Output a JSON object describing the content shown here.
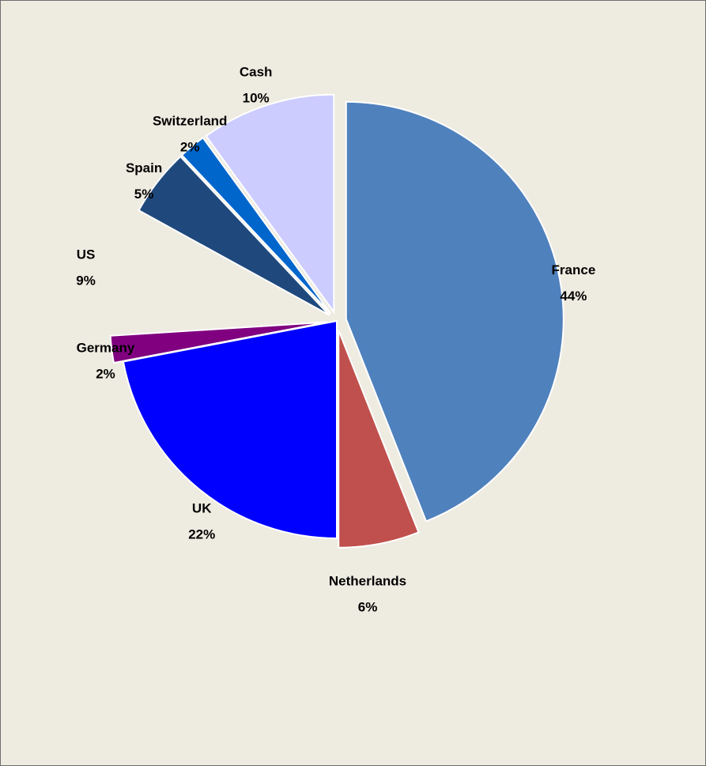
{
  "chart_data": {
    "type": "pie",
    "title": "",
    "slices": [
      {
        "name": "France",
        "value": 44,
        "label": "44%",
        "color": "#4f81bd",
        "exploded": true
      },
      {
        "name": "Netherlands",
        "value": 6,
        "label": "6%",
        "color": "#c0504d",
        "exploded": true
      },
      {
        "name": "UK",
        "value": 22,
        "label": "22%",
        "color": "#0000ff",
        "exploded": false
      },
      {
        "name": "Germany",
        "value": 2,
        "label": "2%",
        "color": "#800080",
        "exploded": true
      },
      {
        "name": "US",
        "value": 9,
        "label": "9%",
        "color": "#ffffff",
        "exploded": false,
        "hidden": true
      },
      {
        "name": "Spain",
        "value": 5,
        "label": "5%",
        "color": "#1f497d",
        "exploded": true
      },
      {
        "name": "Switzerland",
        "value": 2,
        "label": "2%",
        "color": "#0066cc",
        "exploded": true
      },
      {
        "name": "Cash",
        "value": 10,
        "label": "10%",
        "color": "#ccccff",
        "exploded": true
      }
    ],
    "legend": "none"
  },
  "colors": {
    "background": "#eeebe1",
    "border": "#6e6e6e"
  }
}
